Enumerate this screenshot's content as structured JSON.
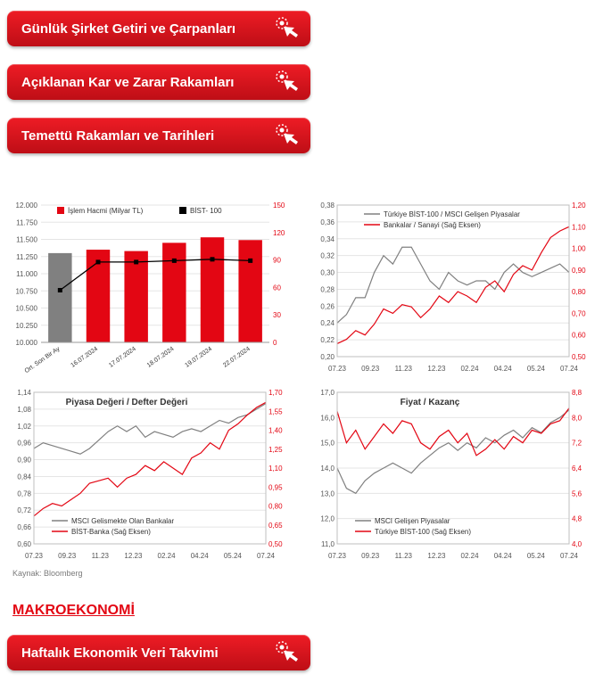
{
  "buttons": {
    "b1": "Günlük Şirket Getiri ve Çarpanları",
    "b2": "Açıklanan Kar ve Zarar Rakamları",
    "b3": "Temettü Rakamları ve Tarihleri",
    "b4": "Haftalık Ekonomik Veri Takvimi"
  },
  "footnote": "Kaynak: Bloomberg",
  "section": "MAKROEKONOMİ",
  "colors": {
    "red": "#e30613",
    "gray_series": "#808080",
    "axis": "#7f7f7f",
    "grid": "#e5e5e5",
    "black": "#000000",
    "btn_grad_top": "#ee1c25",
    "btn_grad_bot": "#be0e16"
  },
  "chart1": {
    "type": "bar-line-combo",
    "legend": [
      "İşlem Hacmi (Milyar TL)",
      "BİST- 100"
    ],
    "ylim_left": [
      10000,
      12000
    ],
    "ytick_left": [
      10000,
      10250,
      10500,
      10750,
      11000,
      11250,
      11500,
      11750,
      12000
    ],
    "ylim_right": [
      0,
      150
    ],
    "ytick_right": [
      0,
      30,
      60,
      90,
      120,
      150
    ],
    "categories": [
      "Ort. Son Bir Ay",
      "16.07.2024",
      "17.07.2024",
      "18.07.2024",
      "19.07.2024",
      "22.07.2024"
    ],
    "bars": [
      11300,
      11350,
      11330,
      11450,
      11530,
      11490
    ],
    "bar_colors": [
      "#808080",
      "#e30613",
      "#e30613",
      "#e30613",
      "#e30613",
      "#e30613"
    ],
    "bar_baseline": 10000,
    "line": [
      10760,
      11170,
      11170,
      11190,
      11210,
      11190
    ],
    "marker": "square",
    "line_color": "#000000",
    "bg": "#ffffff",
    "grid_color": "#e5e5e5"
  },
  "chart2": {
    "type": "dual-line",
    "legend": [
      "Türkiye BİST-100 / MSCI Gelişen Piyasalar",
      "Bankalar / Sanayi (Sağ Eksen)"
    ],
    "series_colors": [
      "#808080",
      "#e30613"
    ],
    "ylim_left": [
      0.2,
      0.38
    ],
    "ytick_left": [
      0.2,
      0.22,
      0.24,
      0.26,
      0.28,
      0.3,
      0.32,
      0.34,
      0.36,
      0.38
    ],
    "ylim_right": [
      0.5,
      1.2
    ],
    "ytick_right": [
      0.5,
      0.6,
      0.7,
      0.8,
      0.9,
      1.0,
      1.1,
      1.2
    ],
    "xticks": [
      "07.23",
      "09.23",
      "11.23",
      "12.23",
      "02.24",
      "04.24",
      "05.24",
      "07.24"
    ],
    "gray_series": [
      0.24,
      0.25,
      0.27,
      0.27,
      0.3,
      0.32,
      0.31,
      0.33,
      0.33,
      0.31,
      0.29,
      0.28,
      0.3,
      0.29,
      0.285,
      0.29,
      0.29,
      0.28,
      0.3,
      0.31,
      0.3,
      0.295,
      0.3,
      0.305,
      0.31,
      0.3
    ],
    "red_series": [
      0.56,
      0.58,
      0.62,
      0.6,
      0.65,
      0.72,
      0.7,
      0.74,
      0.73,
      0.68,
      0.72,
      0.78,
      0.75,
      0.8,
      0.78,
      0.75,
      0.82,
      0.85,
      0.8,
      0.88,
      0.92,
      0.9,
      0.98,
      1.05,
      1.08,
      1.1
    ],
    "bg": "#ffffff",
    "grid_color": "#e5e5e5"
  },
  "chart3": {
    "type": "dual-line",
    "title": "Piyasa Değeri / Defter Değeri",
    "legend": [
      "MSCI Gelismekte Olan Bankalar",
      "BİST-Banka (Sağ Eksen)"
    ],
    "series_colors": [
      "#808080",
      "#e30613"
    ],
    "ylim_left": [
      0.6,
      1.14
    ],
    "ytick_left": [
      0.6,
      0.66,
      0.72,
      0.78,
      0.84,
      0.9,
      0.96,
      1.02,
      1.08,
      1.14
    ],
    "ylim_right": [
      0.5,
      1.7
    ],
    "ytick_right": [
      0.5,
      0.65,
      0.8,
      0.95,
      1.1,
      1.25,
      1.4,
      1.55,
      1.7
    ],
    "xticks": [
      "07.23",
      "09.23",
      "11.23",
      "12.23",
      "02.24",
      "04.24",
      "05.24",
      "07.24"
    ],
    "gray_series": [
      0.94,
      0.96,
      0.95,
      0.94,
      0.93,
      0.92,
      0.94,
      0.97,
      1.0,
      1.02,
      1.0,
      1.02,
      0.98,
      1.0,
      0.99,
      0.98,
      1.0,
      1.01,
      1.0,
      1.02,
      1.04,
      1.03,
      1.05,
      1.06,
      1.08,
      1.1
    ],
    "red_series": [
      0.72,
      0.78,
      0.82,
      0.8,
      0.85,
      0.9,
      0.98,
      1.0,
      1.02,
      0.95,
      1.02,
      1.05,
      1.12,
      1.08,
      1.15,
      1.1,
      1.05,
      1.18,
      1.22,
      1.3,
      1.25,
      1.4,
      1.45,
      1.52,
      1.58,
      1.62
    ],
    "bg": "#ffffff",
    "grid_color": "#e5e5e5"
  },
  "chart4": {
    "type": "dual-line",
    "title": "Fiyat / Kazanç",
    "legend": [
      "MSCI Gelişen Piyasalar",
      "Türkiye BİST-100 (Sağ Eksen)"
    ],
    "series_colors": [
      "#808080",
      "#e30613"
    ],
    "ylim_left": [
      11.0,
      17.0
    ],
    "ytick_left": [
      11.0,
      12.0,
      13.0,
      14.0,
      15.0,
      16.0,
      17.0
    ],
    "ylim_right": [
      4.0,
      8.8
    ],
    "ytick_right": [
      4.0,
      4.8,
      5.6,
      6.4,
      7.2,
      8.0,
      8.8
    ],
    "xticks": [
      "07.23",
      "09.23",
      "11.23",
      "12.23",
      "02.24",
      "04.24",
      "05.24",
      "07.24"
    ],
    "gray_series": [
      14.0,
      13.2,
      13.0,
      13.5,
      13.8,
      14.0,
      14.2,
      14.0,
      13.8,
      14.2,
      14.5,
      14.8,
      15.0,
      14.7,
      15.0,
      14.8,
      15.2,
      15.0,
      15.3,
      15.5,
      15.2,
      15.6,
      15.4,
      15.8,
      16.0,
      16.3
    ],
    "red_series": [
      8.2,
      7.2,
      7.6,
      7.0,
      7.4,
      7.8,
      7.5,
      7.9,
      7.8,
      7.2,
      7.0,
      7.4,
      7.6,
      7.2,
      7.5,
      6.8,
      7.0,
      7.3,
      7.0,
      7.4,
      7.2,
      7.6,
      7.5,
      7.8,
      7.9,
      8.3
    ],
    "bg": "#ffffff",
    "grid_color": "#e5e5e5"
  },
  "label_fmt": {
    "chart1_left": "int-thousand-dot",
    "chart2_left": "2dec-comma",
    "chart2_right": "2dec-comma",
    "chart3_left": "2dec-comma",
    "chart3_right": "2dec-comma",
    "chart4_left": "1dec-comma",
    "chart4_right": "1dec-comma"
  }
}
